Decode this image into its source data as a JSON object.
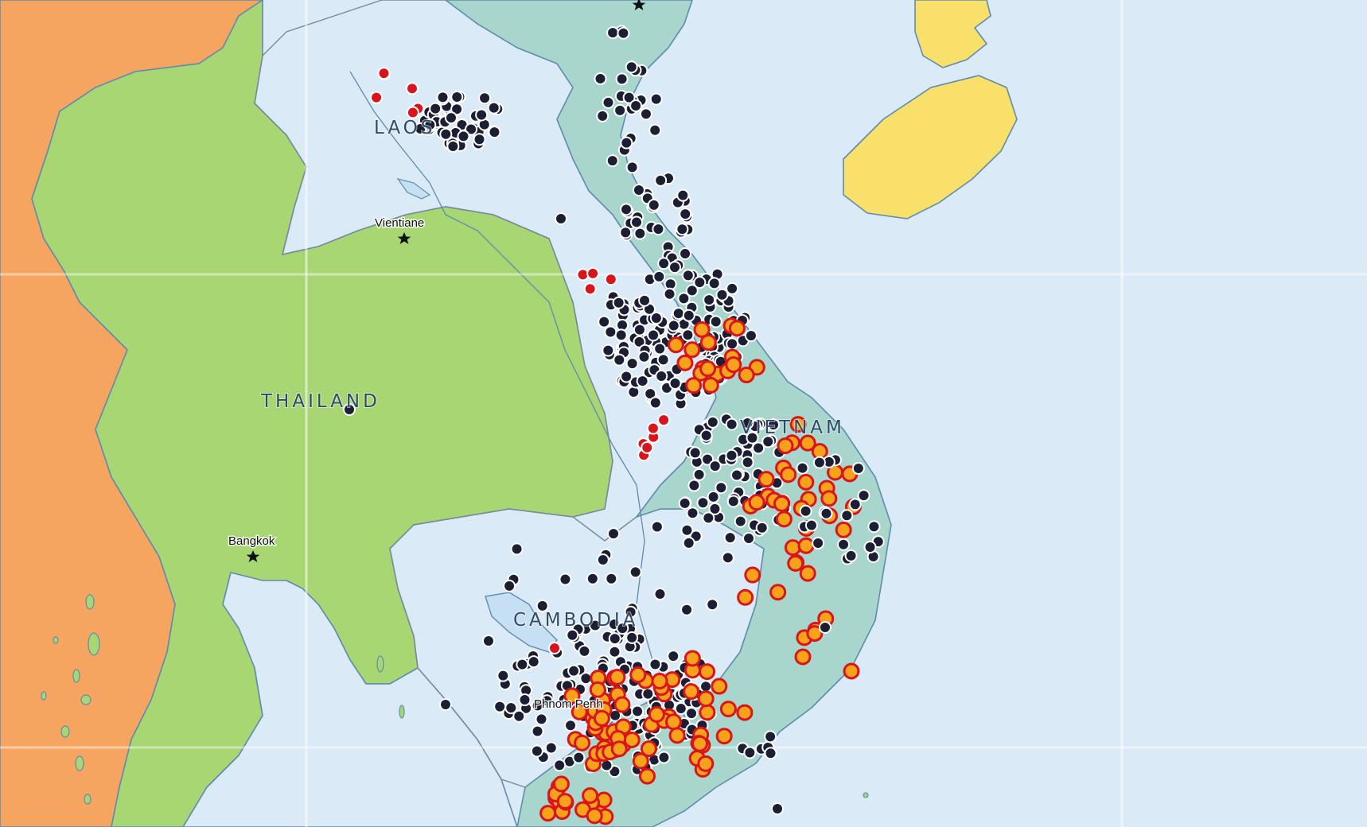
{
  "map": {
    "labels": {
      "laos": "LAOS",
      "thailand": "THAILAND",
      "vietnam": "VIETNAM",
      "cambodia": "CAMBODIA",
      "vientiane": "Vientiane",
      "bangkok": "Bangkok",
      "phnom_penh": "Phnom Penh"
    },
    "colors": {
      "sea": "#dbeaf7",
      "myanmar": "#f6a561",
      "thailand": "#a7d672",
      "laos": "#d0b5d6",
      "cambodia": "#f3c2d6",
      "vietnam": "#a8d6cc",
      "hainan": "#f8e06a",
      "marker_dark": "#1c1f33",
      "marker_red": "#d9141b",
      "marker_orange": "#f7a21a"
    },
    "marker_types": [
      "dark-dot",
      "red-dot",
      "orange-ring-dot"
    ],
    "capital_icon": "star-icon"
  }
}
